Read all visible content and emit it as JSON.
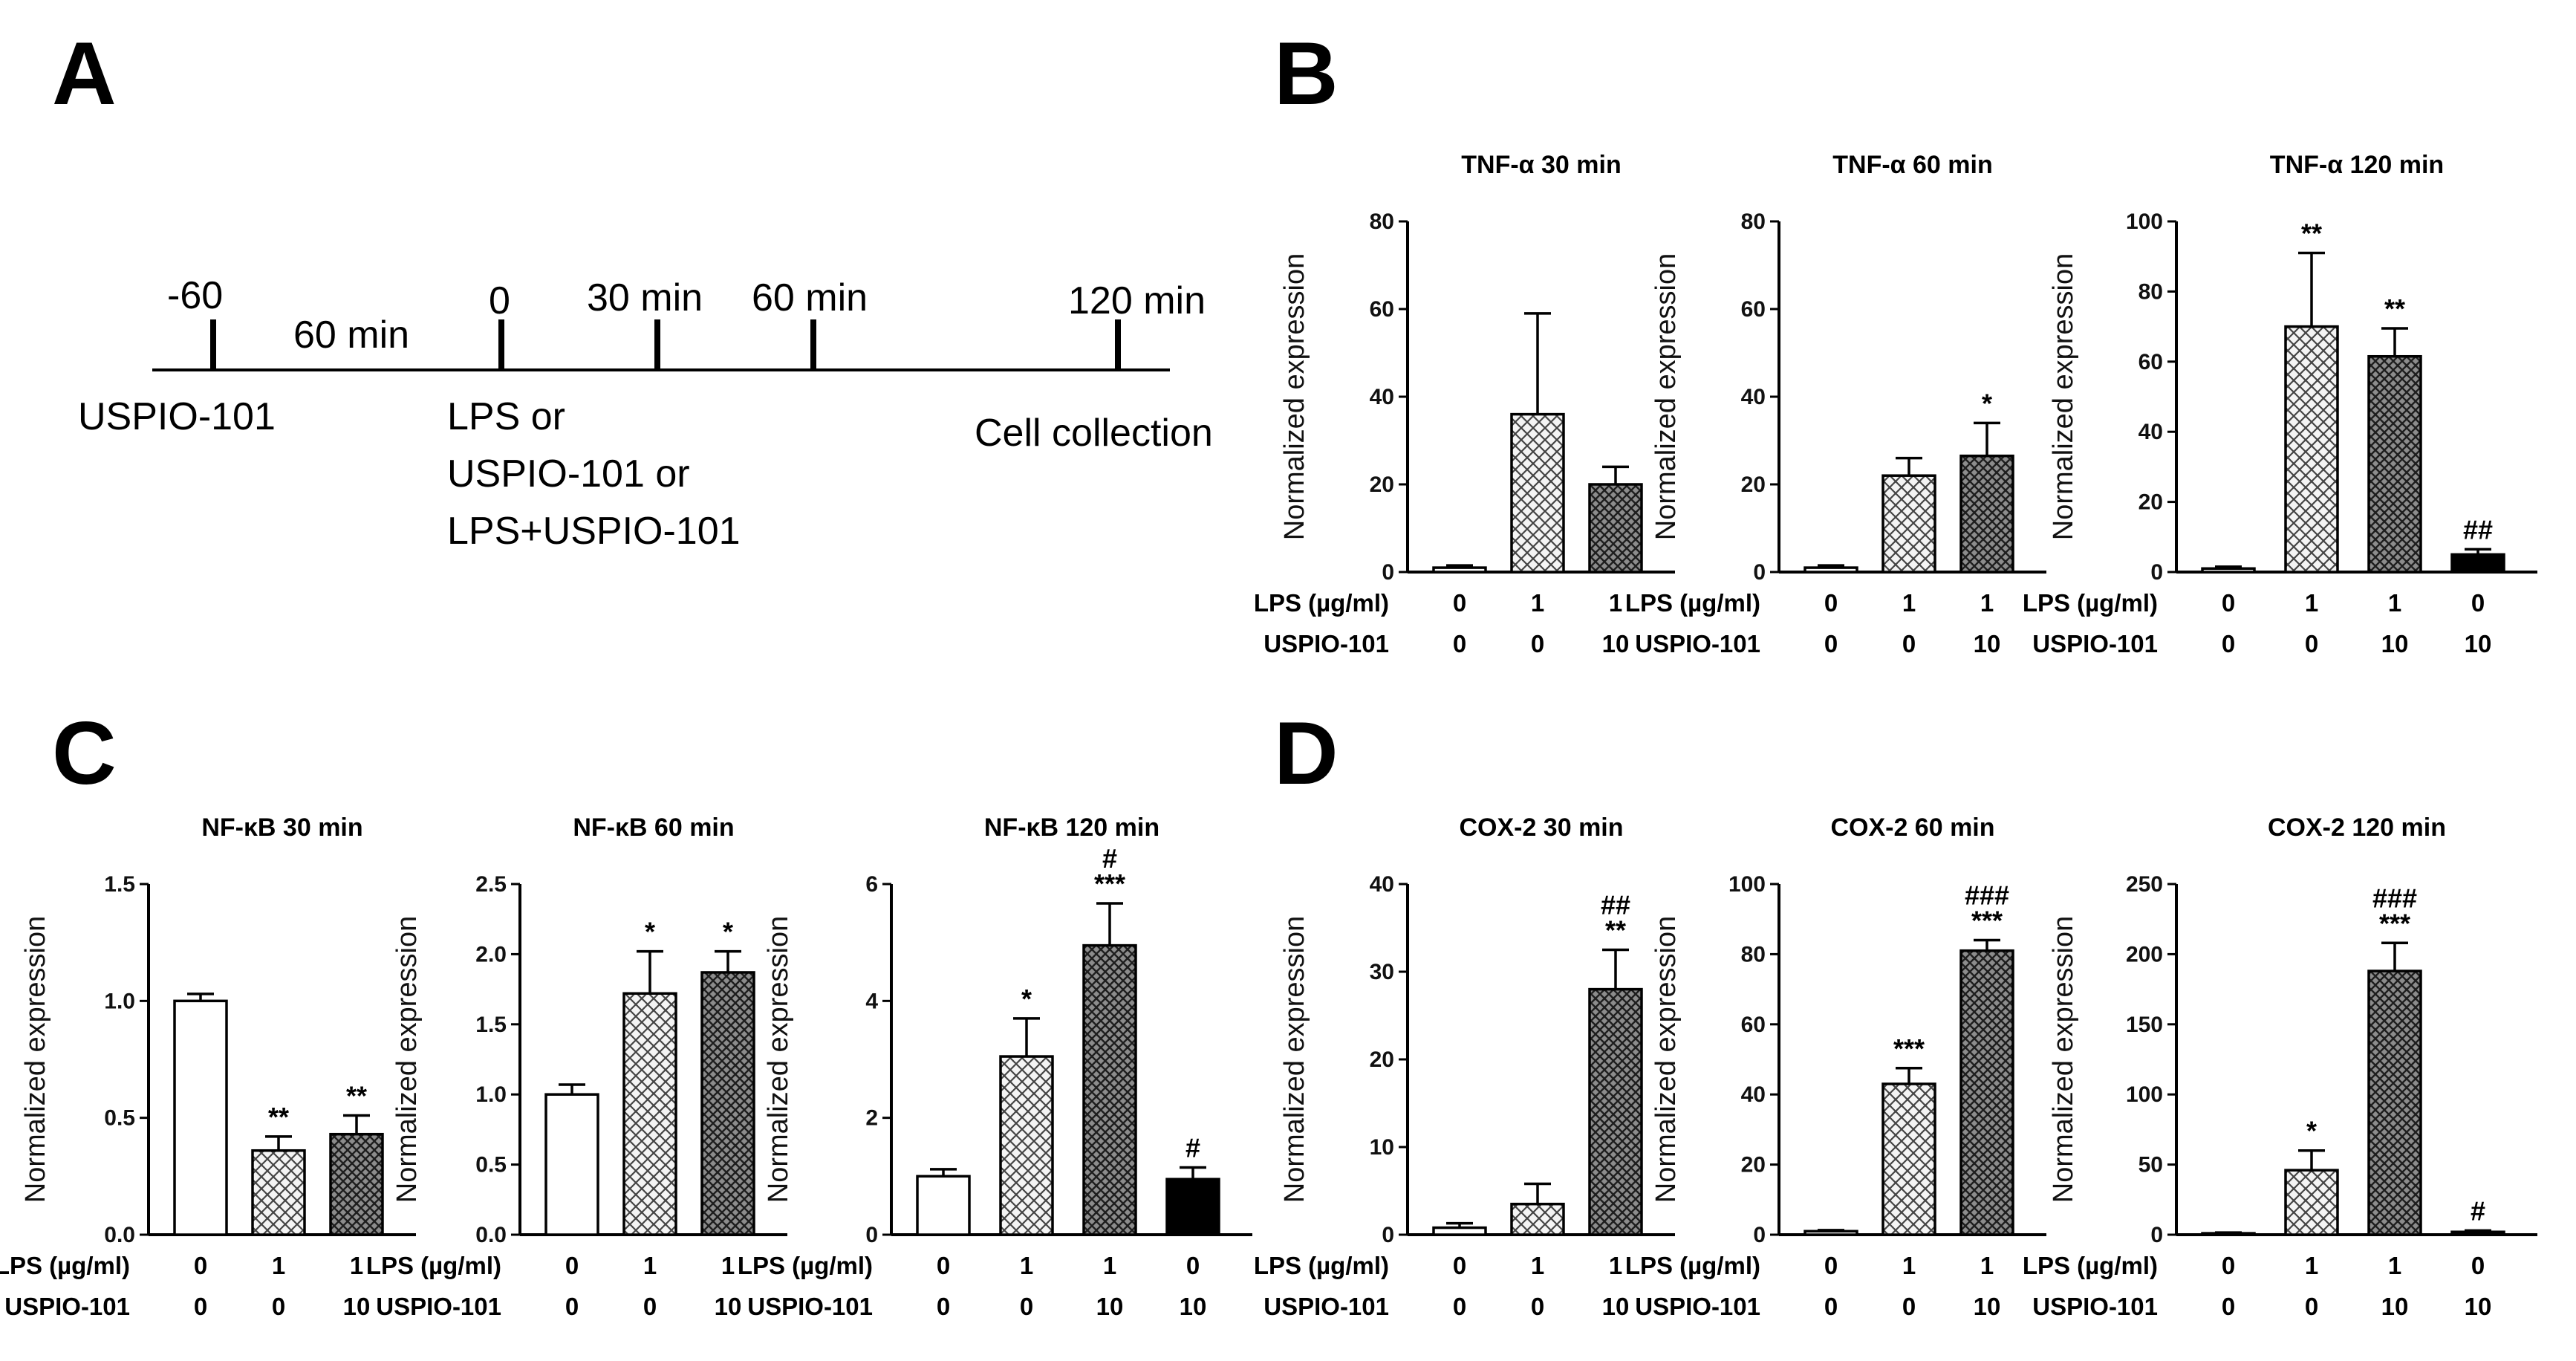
{
  "panels": {
    "A": "A",
    "B": "B",
    "C": "C",
    "D": "D"
  },
  "timeline": {
    "ticks": [
      "-60",
      "0",
      "30 min",
      "60 min",
      "120  min"
    ],
    "interval_label": "60 min",
    "events": [
      "USPIO-101",
      "LPS or",
      "USPIO-101 or",
      "LPS+USPIO-101",
      "Cell collection"
    ]
  },
  "condition_labels": {
    "lps": "LPS (µg/ml)",
    "uspio": "USPIO-101"
  },
  "colors": {
    "control": "#ffffff",
    "lps": "#f4f4f4",
    "lps_uspio": "#8c8c8c",
    "uspio": "#000000",
    "axis": "#000000"
  },
  "chart_data": [
    {
      "type": "bar",
      "title": "TNF-α 30 min",
      "ylabel": "Normalized expression",
      "ylim": [
        0,
        80
      ],
      "yticks": [
        "0",
        "20",
        "40",
        "60",
        "80"
      ],
      "categories": [
        "LPS 0 / USPIO-101 0",
        "LPS 1 / USPIO-101 0",
        "LPS 1 / USPIO-101 10"
      ],
      "lps": [
        "0",
        "1",
        "1"
      ],
      "uspio": [
        "0",
        "0",
        "10"
      ],
      "values": [
        1,
        36,
        20
      ],
      "errors": [
        0.5,
        23,
        4
      ],
      "annotations": [
        "",
        "",
        ""
      ],
      "patterns": [
        "control",
        "lps",
        "lps_uspio"
      ]
    },
    {
      "type": "bar",
      "title": "TNF-α 60 min",
      "ylabel": "Normalized expression",
      "ylim": [
        0,
        80
      ],
      "yticks": [
        "0",
        "20",
        "40",
        "60",
        "80"
      ],
      "categories": [
        "LPS 0 / USPIO-101 0",
        "LPS 1 / USPIO-101 0",
        "LPS 1 / USPIO-101 10"
      ],
      "lps": [
        "0",
        "1",
        "1"
      ],
      "uspio": [
        "0",
        "0",
        "10"
      ],
      "values": [
        1,
        22,
        26.5
      ],
      "errors": [
        0.5,
        4,
        7.5
      ],
      "annotations": [
        "",
        "",
        "*"
      ],
      "patterns": [
        "control",
        "lps",
        "lps_uspio"
      ]
    },
    {
      "type": "bar",
      "title": "TNF-α 120 min",
      "ylabel": "Normalized expression",
      "ylim": [
        0,
        100
      ],
      "yticks": [
        "0",
        "20",
        "40",
        "60",
        "80",
        "100"
      ],
      "categories": [
        "LPS 0 / USPIO-101 0",
        "LPS 1 / USPIO-101 0",
        "LPS 1 / USPIO-101 10",
        "LPS 0 / USPIO-101 10"
      ],
      "lps": [
        "0",
        "1",
        "1",
        "0"
      ],
      "uspio": [
        "0",
        "0",
        "10",
        "10"
      ],
      "values": [
        1,
        70,
        61.5,
        5
      ],
      "errors": [
        0.5,
        21,
        8,
        1.5
      ],
      "annotations": [
        "",
        "**",
        "**",
        "##"
      ],
      "patterns": [
        "control",
        "lps",
        "lps_uspio",
        "uspio"
      ]
    },
    {
      "type": "bar",
      "title": "NF-κB 30 min",
      "ylabel": "Normalized expression",
      "ylim": [
        0,
        1.5
      ],
      "yticks": [
        "0.0",
        "0.5",
        "1.0",
        "1.5"
      ],
      "categories": [
        "LPS 0 / USPIO-101 0",
        "LPS 1 / USPIO-101 0",
        "LPS 1 / USPIO-101 10"
      ],
      "lps": [
        "0",
        "1",
        "1"
      ],
      "uspio": [
        "0",
        "0",
        "10"
      ],
      "values": [
        1.0,
        0.36,
        0.43
      ],
      "errors": [
        0.03,
        0.06,
        0.08
      ],
      "annotations": [
        "",
        "**",
        "**"
      ],
      "patterns": [
        "control",
        "lps",
        "lps_uspio"
      ]
    },
    {
      "type": "bar",
      "title": "NF-κB 60 min",
      "ylabel": "Normalized expression",
      "ylim": [
        0,
        2.5
      ],
      "yticks": [
        "0.0",
        "0.5",
        "1.0",
        "1.5",
        "2.0",
        "2.5"
      ],
      "categories": [
        "LPS 0 / USPIO-101 0",
        "LPS 1 / USPIO-101 0",
        "LPS 1 / USPIO-101 10"
      ],
      "lps": [
        "0",
        "1",
        "1"
      ],
      "uspio": [
        "0",
        "0",
        "10"
      ],
      "values": [
        1.0,
        1.72,
        1.87
      ],
      "errors": [
        0.07,
        0.3,
        0.15
      ],
      "annotations": [
        "",
        "*",
        "*"
      ],
      "patterns": [
        "control",
        "lps",
        "lps_uspio"
      ]
    },
    {
      "type": "bar",
      "title": "NF-κB 120 min",
      "ylabel": "Normalized expression",
      "ylim": [
        0,
        6
      ],
      "yticks": [
        "0",
        "2",
        "4",
        "6"
      ],
      "categories": [
        "LPS 0 / USPIO-101 0",
        "LPS 1 / USPIO-101 0",
        "LPS 1 / USPIO-101 10",
        "LPS 0 / USPIO-101 10"
      ],
      "lps": [
        "0",
        "1",
        "1",
        "0"
      ],
      "uspio": [
        "0",
        "0",
        "10",
        "10"
      ],
      "values": [
        1.0,
        3.05,
        4.95,
        0.95
      ],
      "errors": [
        0.12,
        0.65,
        0.72,
        0.2
      ],
      "annotations": [
        "",
        "*",
        "#\n***",
        "#"
      ],
      "patterns": [
        "control",
        "lps",
        "lps_uspio",
        "uspio"
      ]
    },
    {
      "type": "bar",
      "title": "COX-2 30 min",
      "ylabel": "Normalized expression",
      "ylim": [
        0,
        40
      ],
      "yticks": [
        "0",
        "10",
        "20",
        "30",
        "40"
      ],
      "categories": [
        "LPS 0 / USPIO-101 0",
        "LPS 1 / USPIO-101 0",
        "LPS 1 / USPIO-101 10"
      ],
      "lps": [
        "0",
        "1",
        "1"
      ],
      "uspio": [
        "0",
        "0",
        "10"
      ],
      "values": [
        0.8,
        3.5,
        28
      ],
      "errors": [
        0.5,
        2.3,
        4.5
      ],
      "annotations": [
        "",
        "",
        "##\n**"
      ],
      "patterns": [
        "control",
        "lps",
        "lps_uspio"
      ]
    },
    {
      "type": "bar",
      "title": "COX-2 60 min",
      "ylabel": "Normalized expression",
      "ylim": [
        0,
        100
      ],
      "yticks": [
        "0",
        "20",
        "40",
        "60",
        "80",
        "100"
      ],
      "categories": [
        "LPS 0 / USPIO-101 0",
        "LPS 1 / USPIO-101 0",
        "LPS 1 / USPIO-101 10"
      ],
      "lps": [
        "0",
        "1",
        "1"
      ],
      "uspio": [
        "0",
        "0",
        "10"
      ],
      "values": [
        1,
        43,
        81
      ],
      "errors": [
        0.3,
        4.5,
        3
      ],
      "annotations": [
        "",
        "***",
        "###\n***"
      ],
      "patterns": [
        "control",
        "lps",
        "lps_uspio"
      ]
    },
    {
      "type": "bar",
      "title": "COX-2 120 min",
      "ylabel": "Normalized expression",
      "ylim": [
        0,
        250
      ],
      "yticks": [
        "0",
        "50",
        "100",
        "150",
        "200",
        "250"
      ],
      "categories": [
        "LPS 0 / USPIO-101 0",
        "LPS 1 / USPIO-101 0",
        "LPS 1 / USPIO-101 10",
        "LPS 0 / USPIO-101 10"
      ],
      "lps": [
        "0",
        "1",
        "1",
        "0"
      ],
      "uspio": [
        "0",
        "0",
        "10",
        "10"
      ],
      "values": [
        1,
        46,
        188,
        2
      ],
      "errors": [
        0.5,
        14,
        20,
        1
      ],
      "annotations": [
        "",
        "*",
        "###\n***",
        "#"
      ],
      "patterns": [
        "control",
        "lps",
        "lps_uspio",
        "uspio"
      ]
    }
  ]
}
